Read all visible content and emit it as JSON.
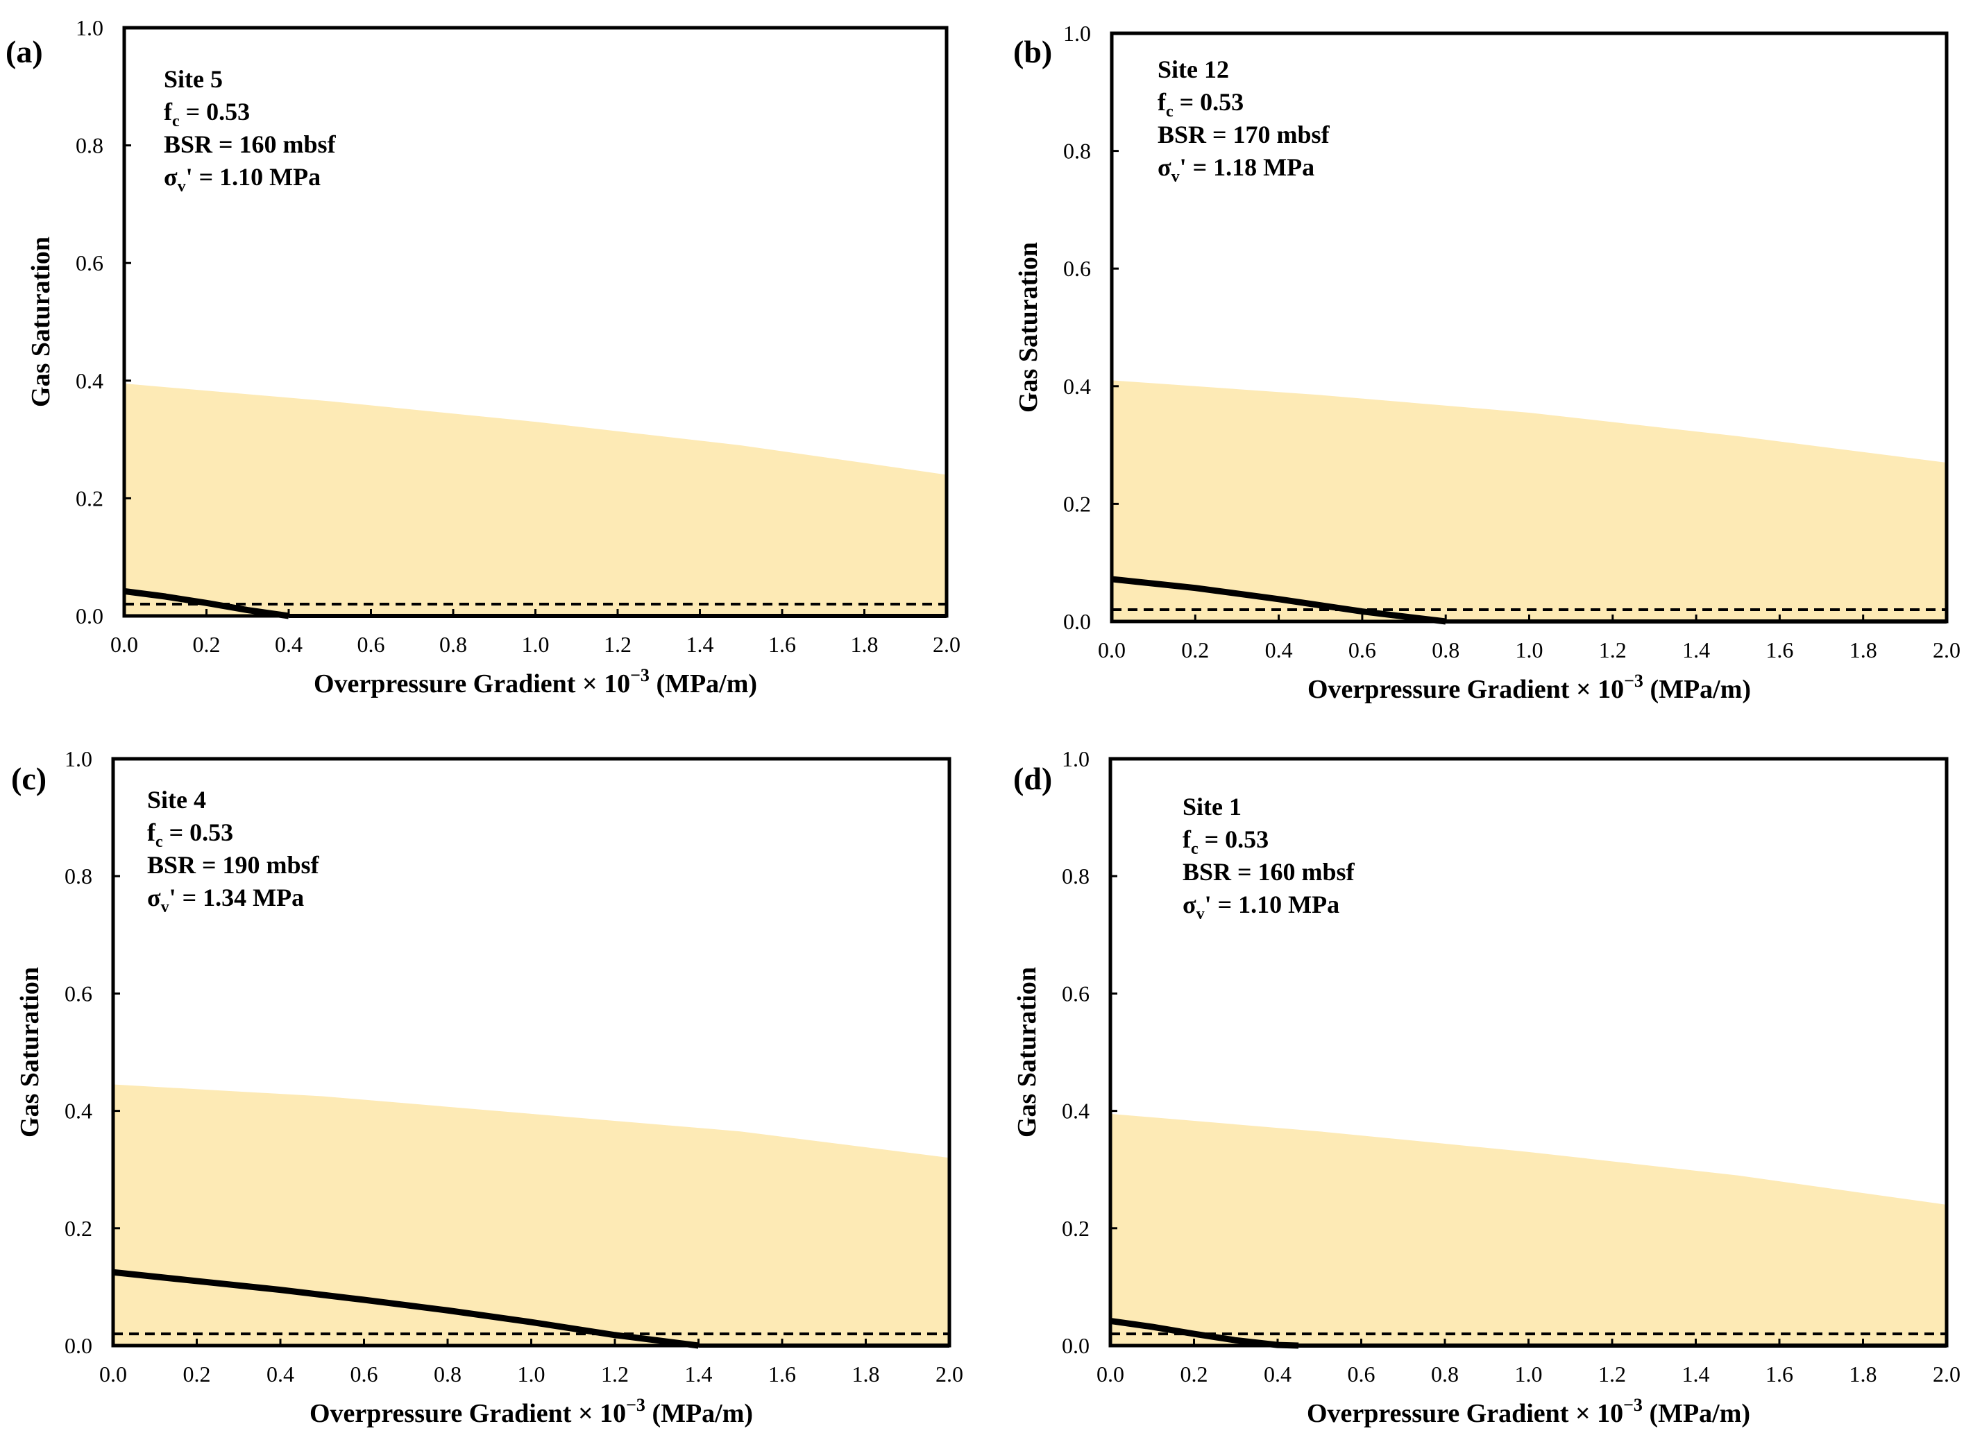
{
  "colors": {
    "band": "#fdeab5",
    "line": "#000000",
    "frame": "#000000"
  },
  "chart_data": [
    {
      "panel": "(a)",
      "type": "area",
      "title": "",
      "xlabel": "Overpressure Gradient × 10",
      "xlabel_exp": "−3",
      "xlabel_unit": " (MPa/m)",
      "ylabel": "Gas Saturation",
      "xlim": [
        0,
        2.0
      ],
      "ylim": [
        0,
        1.0
      ],
      "xticks": [
        "0.0",
        "0.2",
        "0.4",
        "0.6",
        "0.8",
        "1.0",
        "1.2",
        "1.4",
        "1.6",
        "1.8",
        "2.0"
      ],
      "yticks": [
        "0.0",
        "0.2",
        "0.4",
        "0.6",
        "0.8",
        "1.0"
      ],
      "annotations": {
        "site": "Site 5",
        "fc_sym": "f",
        "fc_sub": "c",
        "fc_val": " = 0.53",
        "bsr": "BSR = 160 mbsf",
        "sig_sym": "σ",
        "sig_sub": "v",
        "sig_val": "' = 1.10 MPa"
      },
      "band": {
        "x": [
          0,
          0.5,
          1.0,
          1.5,
          2.0
        ],
        "upper": [
          0.395,
          0.365,
          0.33,
          0.29,
          0.24
        ]
      },
      "solid_line": {
        "x": [
          0,
          0.1,
          0.2,
          0.3,
          0.4
        ],
        "y": [
          0.042,
          0.033,
          0.022,
          0.01,
          0.0
        ]
      },
      "dashed_line": {
        "y": 0.02
      }
    },
    {
      "panel": "(b)",
      "type": "area",
      "title": "",
      "xlabel": "Overpressure Gradient × 10",
      "xlabel_exp": "−3",
      "xlabel_unit": " (MPa/m)",
      "ylabel": "Gas Saturation",
      "xlim": [
        0,
        2.0
      ],
      "ylim": [
        0,
        1.0
      ],
      "xticks": [
        "0.0",
        "0.2",
        "0.4",
        "0.6",
        "0.8",
        "1.0",
        "1.2",
        "1.4",
        "1.6",
        "1.8",
        "2.0"
      ],
      "yticks": [
        "0.0",
        "0.2",
        "0.4",
        "0.6",
        "0.8",
        "1.0"
      ],
      "annotations": {
        "site": "Site 12",
        "fc_sym": "f",
        "fc_sub": "c",
        "fc_val": " = 0.53",
        "bsr": "BSR = 170 mbsf",
        "sig_sym": "σ",
        "sig_sub": "v",
        "sig_val": "' = 1.18 MPa"
      },
      "band": {
        "x": [
          0,
          0.5,
          1.0,
          1.5,
          2.0
        ],
        "upper": [
          0.41,
          0.385,
          0.355,
          0.315,
          0.27
        ]
      },
      "solid_line": {
        "x": [
          0,
          0.2,
          0.4,
          0.6,
          0.8
        ],
        "y": [
          0.072,
          0.057,
          0.038,
          0.017,
          0.0
        ]
      },
      "dashed_line": {
        "y": 0.02
      }
    },
    {
      "panel": "(c)",
      "type": "area",
      "title": "",
      "xlabel": "Overpressure Gradient × 10",
      "xlabel_exp": "−3",
      "xlabel_unit": " (MPa/m)",
      "ylabel": "Gas Saturation",
      "xlim": [
        0,
        2.0
      ],
      "ylim": [
        0,
        1.0
      ],
      "xticks": [
        "0.0",
        "0.2",
        "0.4",
        "0.6",
        "0.8",
        "1.0",
        "1.2",
        "1.4",
        "1.6",
        "1.8",
        "2.0"
      ],
      "yticks": [
        "0.0",
        "0.2",
        "0.4",
        "0.6",
        "0.8",
        "1.0"
      ],
      "annotations": {
        "site": "Site 4",
        "fc_sym": "f",
        "fc_sub": "c",
        "fc_val": " = 0.53",
        "bsr": "BSR = 190 mbsf",
        "sig_sym": "σ",
        "sig_sub": "v",
        "sig_val": "' = 1.34 MPa"
      },
      "band": {
        "x": [
          0,
          0.5,
          1.0,
          1.5,
          2.0
        ],
        "upper": [
          0.445,
          0.425,
          0.395,
          0.365,
          0.32
        ]
      },
      "solid_line": {
        "x": [
          0,
          0.2,
          0.4,
          0.6,
          0.8,
          1.0,
          1.2,
          1.4
        ],
        "y": [
          0.125,
          0.11,
          0.095,
          0.078,
          0.06,
          0.04,
          0.018,
          0.0
        ]
      },
      "dashed_line": {
        "y": 0.02
      }
    },
    {
      "panel": "(d)",
      "type": "area",
      "title": "",
      "xlabel": "Overpressure Gradient × 10",
      "xlabel_exp": "−3",
      "xlabel_unit": " (MPa/m)",
      "ylabel": "Gas Saturation",
      "xlim": [
        0,
        2.0
      ],
      "ylim": [
        0,
        1.0
      ],
      "xticks": [
        "0.0",
        "0.2",
        "0.4",
        "0.6",
        "0.8",
        "1.0",
        "1.2",
        "1.4",
        "1.6",
        "1.8",
        "2.0"
      ],
      "yticks": [
        "0.0",
        "0.2",
        "0.4",
        "0.6",
        "0.8",
        "1.0"
      ],
      "annotations": {
        "site": "Site 1",
        "fc_sym": "f",
        "fc_sub": "c",
        "fc_val": " = 0.53",
        "bsr": "BSR = 160 mbsf",
        "sig_sym": "σ",
        "sig_sub": "v",
        "sig_val": "' = 1.10 MPa"
      },
      "band": {
        "x": [
          0,
          0.5,
          1.0,
          1.5,
          2.0
        ],
        "upper": [
          0.395,
          0.365,
          0.33,
          0.29,
          0.24
        ]
      },
      "solid_line": {
        "x": [
          0,
          0.1,
          0.2,
          0.3,
          0.4,
          0.45
        ],
        "y": [
          0.042,
          0.032,
          0.02,
          0.009,
          0.001,
          0.0
        ]
      },
      "dashed_line": {
        "y": 0.02
      }
    }
  ]
}
